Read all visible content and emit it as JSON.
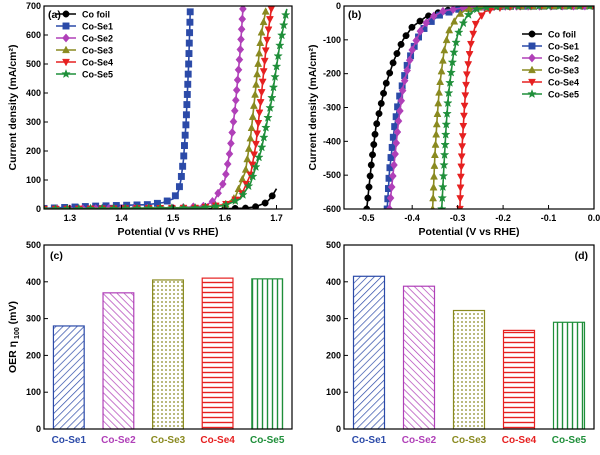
{
  "colors": {
    "Co foil": "#000000",
    "Co-Se1": "#2b4aa8",
    "Co-Se2": "#b040b8",
    "Co-Se3": "#8a8a20",
    "Co-Se4": "#e62020",
    "Co-Se5": "#1f8f3a"
  },
  "chart_data": [
    {
      "id": "a",
      "panel_label": "(a)",
      "type": "line",
      "xlabel": "Potential (V vs RHE)",
      "ylabel": "Current density (mA/cm²)",
      "xlim": [
        1.25,
        1.73
      ],
      "ylim": [
        0,
        700
      ],
      "xticks": [
        1.3,
        1.4,
        1.5,
        1.6,
        1.7
      ],
      "yticks": [
        0,
        100,
        200,
        300,
        400,
        500,
        600,
        700
      ],
      "legend": "top-left",
      "series": [
        {
          "name": "Co foil",
          "marker": "circle",
          "x": [
            1.25,
            1.5,
            1.6,
            1.64,
            1.66,
            1.68,
            1.69,
            1.7
          ],
          "y": [
            0,
            0,
            1,
            3,
            8,
            22,
            40,
            70
          ]
        },
        {
          "name": "Co-Se1",
          "marker": "square",
          "x": [
            1.25,
            1.35,
            1.45,
            1.48,
            1.5,
            1.51,
            1.515,
            1.52,
            1.525,
            1.53,
            1.533
          ],
          "y": [
            2,
            10,
            15,
            22,
            35,
            60,
            100,
            170,
            300,
            500,
            680
          ]
        },
        {
          "name": "Co-Se2",
          "marker": "diamond",
          "x": [
            1.25,
            1.5,
            1.56,
            1.58,
            1.6,
            1.61,
            1.62,
            1.63,
            1.635
          ],
          "y": [
            0,
            3,
            10,
            30,
            100,
            200,
            350,
            550,
            690
          ]
        },
        {
          "name": "Co-Se3",
          "marker": "triangle",
          "x": [
            1.25,
            1.55,
            1.6,
            1.62,
            1.64,
            1.65,
            1.66,
            1.67,
            1.68
          ],
          "y": [
            0,
            5,
            15,
            40,
            130,
            250,
            420,
            600,
            690
          ]
        },
        {
          "name": "Co-Se4",
          "marker": "triangle-down",
          "x": [
            1.25,
            1.55,
            1.6,
            1.63,
            1.65,
            1.66,
            1.67,
            1.68,
            1.69
          ],
          "y": [
            0,
            4,
            15,
            40,
            120,
            220,
            380,
            560,
            690
          ]
        },
        {
          "name": "Co-Se5",
          "marker": "star",
          "x": [
            1.25,
            1.55,
            1.6,
            1.63,
            1.65,
            1.67,
            1.69,
            1.705,
            1.72
          ],
          "y": [
            0,
            4,
            12,
            35,
            90,
            200,
            370,
            550,
            690
          ]
        }
      ]
    },
    {
      "id": "b",
      "panel_label": "(b)",
      "type": "line",
      "xlabel": "Potential (V vs RHE)",
      "ylabel": "Current density (mA/cm²)",
      "xlim": [
        -0.55,
        0.0
      ],
      "ylim": [
        -600,
        0
      ],
      "xticks": [
        -0.5,
        -0.4,
        -0.3,
        -0.2,
        -0.1,
        0.0
      ],
      "xticklabels": [
        "-0.5",
        "-0.4",
        "-0.3",
        "-0.2",
        "-0.1",
        "0.0"
      ],
      "yticks": [
        -600,
        -500,
        -400,
        -300,
        -200,
        -100,
        0
      ],
      "legend": "right",
      "series": [
        {
          "name": "Co foil",
          "marker": "circle",
          "x": [
            -0.5,
            -0.49,
            -0.48,
            -0.46,
            -0.44,
            -0.42,
            -0.4,
            -0.37,
            -0.33,
            -0.28,
            -0.22,
            -0.15,
            0.0
          ],
          "y": [
            -600,
            -470,
            -360,
            -240,
            -160,
            -100,
            -62,
            -32,
            -14,
            -5,
            -1,
            0,
            0
          ]
        },
        {
          "name": "Co-Se1",
          "marker": "square",
          "x": [
            -0.455,
            -0.45,
            -0.44,
            -0.43,
            -0.41,
            -0.39,
            -0.37,
            -0.34,
            -0.3,
            -0.25,
            -0.18,
            0.0
          ],
          "y": [
            -600,
            -490,
            -370,
            -280,
            -170,
            -100,
            -58,
            -27,
            -10,
            -3,
            -1,
            0
          ]
        },
        {
          "name": "Co-Se2",
          "marker": "diamond",
          "x": [
            -0.45,
            -0.44,
            -0.43,
            -0.42,
            -0.4,
            -0.38,
            -0.36,
            -0.33,
            -0.28,
            -0.2,
            0.0
          ],
          "y": [
            -600,
            -470,
            -340,
            -240,
            -130,
            -68,
            -35,
            -14,
            -4,
            -1,
            0
          ]
        },
        {
          "name": "Co-Se3",
          "marker": "triangle",
          "x": [
            -0.355,
            -0.35,
            -0.345,
            -0.34,
            -0.33,
            -0.32,
            -0.3,
            -0.28,
            -0.25,
            -0.2,
            0.0
          ],
          "y": [
            -600,
            -440,
            -330,
            -240,
            -135,
            -75,
            -28,
            -10,
            -3,
            -1,
            0
          ]
        },
        {
          "name": "Co-Se4",
          "marker": "triangle-down",
          "x": [
            -0.295,
            -0.293,
            -0.29,
            -0.285,
            -0.28,
            -0.27,
            -0.26,
            -0.24,
            -0.2,
            -0.15,
            0.0
          ],
          "y": [
            -600,
            -510,
            -410,
            -300,
            -205,
            -105,
            -52,
            -16,
            -3,
            -1,
            0
          ]
        },
        {
          "name": "Co-Se5",
          "marker": "star",
          "x": [
            -0.335,
            -0.33,
            -0.325,
            -0.32,
            -0.31,
            -0.3,
            -0.28,
            -0.26,
            -0.23,
            -0.18,
            0.0
          ],
          "y": [
            -600,
            -470,
            -350,
            -260,
            -150,
            -85,
            -30,
            -10,
            -3,
            -1,
            0
          ]
        }
      ]
    },
    {
      "id": "c",
      "panel_label": "(c)",
      "type": "bar",
      "ylabel": "OER η",
      "ylabel_subscript": "100",
      "ylabel_unit": " (mV)",
      "ylim": [
        0,
        500
      ],
      "yticks": [
        0,
        100,
        200,
        300,
        400,
        500
      ],
      "categories": [
        "Co-Se1",
        "Co-Se2",
        "Co-Se3",
        "Co-Se4",
        "Co-Se5"
      ],
      "values": [
        280,
        370,
        405,
        410,
        408
      ],
      "patterns": [
        "diag-right",
        "diag-left",
        "dots",
        "horizontal",
        "vertical"
      ]
    },
    {
      "id": "d",
      "panel_label": "(d)",
      "type": "bar",
      "ylim": [
        0,
        500
      ],
      "yticks": [
        0,
        100,
        200,
        300,
        400,
        500
      ],
      "categories": [
        "Co-Se1",
        "Co-Se2",
        "Co-Se3",
        "Co-Se4",
        "Co-Se5"
      ],
      "values": [
        415,
        388,
        322,
        268,
        290
      ],
      "patterns": [
        "diag-right",
        "diag-left",
        "dots",
        "horizontal",
        "vertical"
      ]
    }
  ]
}
